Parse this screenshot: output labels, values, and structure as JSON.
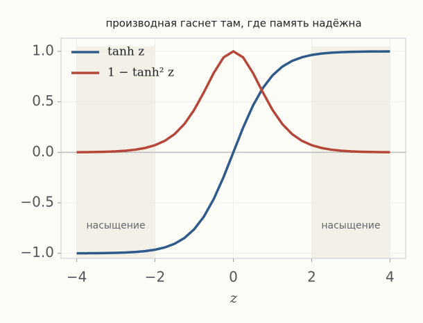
{
  "chart_data": {
    "type": "line",
    "title": "производная гаснет там, где память надёжна",
    "x_label": "z",
    "x": [
      -4,
      -3.75,
      -3.5,
      -3.25,
      -3,
      -2.75,
      -2.5,
      -2.25,
      -2,
      -1.75,
      -1.5,
      -1.25,
      -1,
      -0.75,
      -0.5,
      -0.25,
      0,
      0.25,
      0.5,
      0.75,
      1,
      1.25,
      1.5,
      1.75,
      2,
      2.25,
      2.5,
      2.75,
      3,
      3.25,
      3.5,
      3.75,
      4
    ],
    "series": [
      {
        "name": "tanh z",
        "color": "#2e5b8c",
        "values": [
          -0.9993,
          -0.9989,
          -0.9982,
          -0.997,
          -0.9951,
          -0.9919,
          -0.9866,
          -0.978,
          -0.964,
          -0.9414,
          -0.9051,
          -0.8483,
          -0.7616,
          -0.6351,
          -0.4621,
          -0.2449,
          0,
          0.2449,
          0.4621,
          0.6351,
          0.7616,
          0.8483,
          0.9051,
          0.9414,
          0.964,
          0.978,
          0.9866,
          0.9919,
          0.9951,
          0.997,
          0.9982,
          0.9989,
          0.9993
        ]
      },
      {
        "name": "1 − tanh² z",
        "color": "#b5473a",
        "values": [
          0.0013,
          0.0022,
          0.0036,
          0.006,
          0.0099,
          0.0161,
          0.0266,
          0.0435,
          0.0707,
          0.1138,
          0.1807,
          0.2804,
          0.42,
          0.5966,
          0.7864,
          0.94,
          1,
          0.94,
          0.7864,
          0.5966,
          0.42,
          0.2804,
          0.1807,
          0.1138,
          0.0707,
          0.0435,
          0.0266,
          0.0161,
          0.0099,
          0.006,
          0.0036,
          0.0022,
          0.0013
        ]
      }
    ],
    "xlim": [
      -4.4,
      4.4
    ],
    "ylim": [
      -1.05,
      1.13
    ],
    "xticks": [
      {
        "value": -4,
        "label": "−4"
      },
      {
        "value": -2,
        "label": "−2"
      },
      0,
      2,
      4
    ],
    "yticks": [
      {
        "value": -1,
        "label": "−1.0"
      },
      {
        "value": -0.5,
        "label": "−0.5"
      },
      {
        "value": 0,
        "label": "0.0"
      },
      0.5,
      {
        "value": 1,
        "label": "1.0"
      }
    ],
    "grid": true,
    "hline": 0,
    "spans": [
      [
        -4,
        -2
      ],
      [
        2,
        4
      ]
    ],
    "annotations": [
      "насыщение",
      "насыщение"
    ],
    "legend": "upper left"
  }
}
